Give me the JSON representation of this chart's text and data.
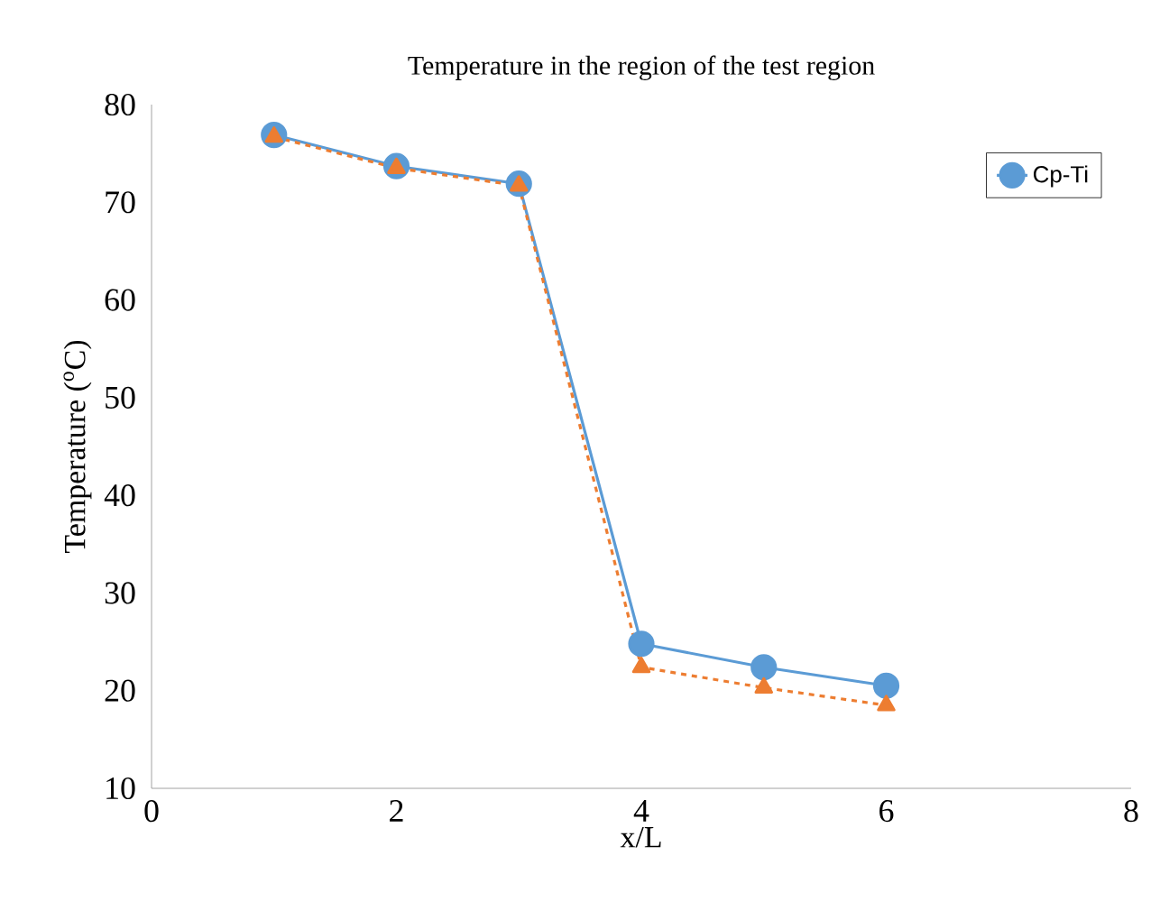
{
  "chart_data": {
    "type": "line",
    "title": "Temperature in the region of the test region",
    "xlabel": "x/L",
    "ylabel": "Temperature ($^{o}$C)",
    "x": [
      1,
      2,
      3,
      4,
      5,
      6
    ],
    "series": [
      {
        "name": "Cp-Ti",
        "color": "#5b9bd5",
        "values": [
          76.9,
          73.7,
          71.9,
          24.8,
          22.4,
          20.5
        ],
        "marker": "circle",
        "line_style": "solid"
      },
      {
        "color": "#ed7d31",
        "values": [
          76.7,
          73.5,
          71.7,
          22.4,
          20.3,
          18.5
        ],
        "marker": "triangle",
        "line_style": "dashed"
      }
    ],
    "xlim": [
      0,
      8
    ],
    "xticks": [
      0,
      2,
      4,
      6,
      8
    ],
    "ylim": [
      10,
      80
    ],
    "yticks": [
      10,
      20,
      30,
      40,
      50,
      60,
      70,
      80
    ],
    "legend": "top right"
  }
}
